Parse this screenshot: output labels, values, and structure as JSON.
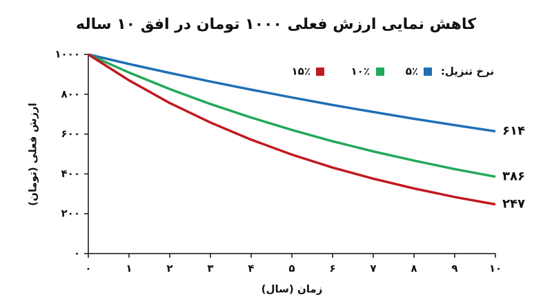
{
  "chart_data": {
    "type": "line",
    "title": "کاهش نمایی ارزش فعلی ۱۰۰۰ تومان در افق ۱۰ ساله",
    "x_label": "زمان (سال)",
    "y_label": "ارزش فعلی (تومان)",
    "legend_title": "نرخ تنزیل:",
    "legend_position": "top-right",
    "x": [
      0,
      1,
      2,
      3,
      4,
      5,
      6,
      7,
      8,
      9,
      10
    ],
    "xlim": [
      0,
      10
    ],
    "xticks": [
      {
        "value": 0,
        "label": "۰"
      },
      {
        "value": 1,
        "label": "۱"
      },
      {
        "value": 2,
        "label": "۲"
      },
      {
        "value": 3,
        "label": "۳"
      },
      {
        "value": 4,
        "label": "۴"
      },
      {
        "value": 5,
        "label": "۵"
      },
      {
        "value": 6,
        "label": "۶"
      },
      {
        "value": 7,
        "label": "۷"
      },
      {
        "value": 8,
        "label": "۸"
      },
      {
        "value": 9,
        "label": "۹"
      },
      {
        "value": 10,
        "label": "۱۰"
      }
    ],
    "ylim": [
      0,
      1000
    ],
    "yticks": [
      {
        "value": 0,
        "label": "۰"
      },
      {
        "value": 200,
        "label": "۲۰۰"
      },
      {
        "value": 400,
        "label": "۴۰۰"
      },
      {
        "value": 600,
        "label": "۶۰۰"
      },
      {
        "value": 800,
        "label": "۸۰۰"
      },
      {
        "value": 1000,
        "label": "۱۰۰۰"
      }
    ],
    "grid": false,
    "series": [
      {
        "name": "۵٪",
        "color": "#1f6fb5",
        "values": [
          1000,
          952,
          907,
          864,
          823,
          784,
          746,
          711,
          677,
          645,
          614
        ],
        "value_labels": [
          null,
          null,
          null,
          null,
          null,
          null,
          null,
          null,
          null,
          null,
          "۶۱۴"
        ]
      },
      {
        "name": "۱۰٪",
        "color": "#22a85a",
        "values": [
          1000,
          909,
          826,
          751,
          683,
          621,
          564,
          513,
          467,
          424,
          386
        ],
        "value_labels": [
          null,
          null,
          null,
          null,
          null,
          null,
          null,
          null,
          null,
          null,
          "۳۸۶"
        ]
      },
      {
        "name": "۱۵٪",
        "color": "#c0191f",
        "values": [
          1000,
          870,
          756,
          658,
          572,
          497,
          432,
          376,
          327,
          284,
          247
        ],
        "value_labels": [
          null,
          null,
          null,
          null,
          null,
          null,
          null,
          null,
          null,
          null,
          "۲۴۷"
        ]
      }
    ]
  }
}
